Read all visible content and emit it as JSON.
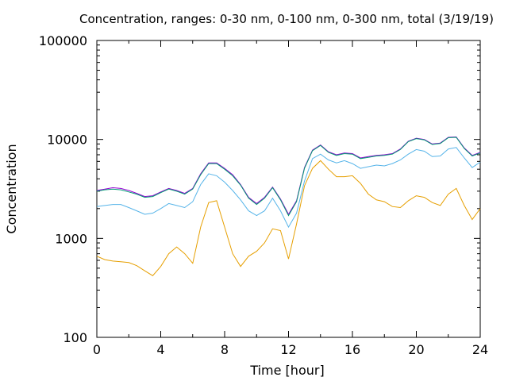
{
  "chart_data": {
    "type": "line",
    "title": "Concentration, ranges: 0-30 nm, 0-100 nm, 0-300 nm, total (3/19/19)",
    "xlabel": "Time [hour]",
    "ylabel": "Concentration",
    "xlim": [
      0,
      24
    ],
    "ylim": [
      100,
      100000
    ],
    "yscale": "log",
    "grid": false,
    "x_ticks": [
      "0",
      "4",
      "8",
      "12",
      "16",
      "20",
      "24"
    ],
    "y_ticks": [
      "100",
      "1000",
      "10000",
      "100000"
    ],
    "x": [
      0,
      0.5,
      1,
      1.5,
      2,
      2.5,
      3,
      3.5,
      4,
      4.5,
      5,
      5.5,
      6,
      6.5,
      7,
      7.5,
      8,
      8.5,
      9,
      9.5,
      10,
      10.5,
      11,
      11.5,
      12,
      12.5,
      13,
      13.5,
      14,
      14.5,
      15,
      15.5,
      16,
      16.5,
      17,
      17.5,
      18,
      18.5,
      19,
      19.5,
      20,
      20.5,
      21,
      21.5,
      22,
      22.5,
      23,
      23.5,
      24
    ],
    "series": [
      {
        "color": "#9400d3",
        "values": [
          3050,
          3150,
          3250,
          3200,
          3050,
          2850,
          2650,
          2700,
          2950,
          3200,
          3050,
          2850,
          3200,
          4500,
          5800,
          5800,
          5100,
          4400,
          3500,
          2600,
          2250,
          2600,
          3300,
          2500,
          1750,
          2400,
          5200,
          7800,
          8800,
          7500,
          7000,
          7300,
          7200,
          6500,
          6700,
          6900,
          7000,
          7200,
          8000,
          9600,
          10300,
          10000,
          9000,
          9200,
          10500,
          10600,
          8200,
          6900,
          7400
        ]
      },
      {
        "color": "#009e73",
        "values": [
          3000,
          3100,
          3150,
          3100,
          2950,
          2800,
          2600,
          2650,
          2900,
          3150,
          3000,
          2800,
          3150,
          4400,
          5700,
          5700,
          5000,
          4300,
          3450,
          2550,
          2200,
          2550,
          3250,
          2450,
          1700,
          2350,
          5100,
          7700,
          8700,
          7400,
          6900,
          7200,
          7100,
          6400,
          6600,
          6800,
          6900,
          7100,
          7900,
          9500,
          10200,
          9900,
          8900,
          9100,
          10400,
          10500,
          8100,
          6800,
          7300
        ]
      },
      {
        "color": "#56b4e9",
        "values": [
          2100,
          2150,
          2200,
          2200,
          2050,
          1900,
          1750,
          1800,
          2000,
          2250,
          2150,
          2050,
          2350,
          3500,
          4500,
          4300,
          3700,
          3050,
          2450,
          1900,
          1700,
          1900,
          2550,
          1900,
          1300,
          1800,
          3800,
          6400,
          7100,
          6200,
          5800,
          6100,
          5700,
          5100,
          5300,
          5500,
          5400,
          5700,
          6200,
          7100,
          7900,
          7600,
          6700,
          6800,
          8000,
          8300,
          6500,
          5200,
          5900
        ]
      },
      {
        "color": "#e69f00",
        "values": [
          660,
          610,
          590,
          580,
          570,
          530,
          470,
          420,
          520,
          700,
          820,
          700,
          560,
          1300,
          2300,
          2400,
          1300,
          700,
          520,
          660,
          740,
          900,
          1250,
          1200,
          620,
          1400,
          3400,
          5100,
          6100,
          5000,
          4200,
          4200,
          4300,
          3600,
          2800,
          2450,
          2350,
          2100,
          2050,
          2400,
          2700,
          2600,
          2300,
          2150,
          2800,
          3200,
          2150,
          1550,
          2000
        ]
      }
    ]
  }
}
